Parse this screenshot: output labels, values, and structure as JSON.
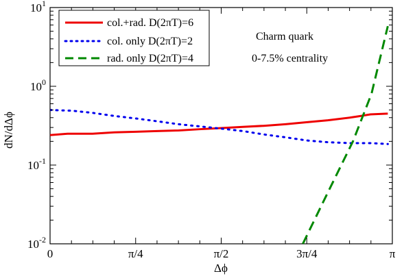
{
  "chart_data": {
    "type": "line",
    "title": "",
    "xlabel": "Δϕ",
    "ylabel": "dN/dΔϕ",
    "yscale": "log",
    "xlim": [
      0,
      3.14159
    ],
    "ylim": [
      0.01,
      10
    ],
    "grid": false,
    "legend_position": "top-left",
    "x_ticks": [
      {
        "value": 0,
        "label": "0"
      },
      {
        "value": 0.7854,
        "label": "π/4"
      },
      {
        "value": 1.5708,
        "label": "π/2"
      },
      {
        "value": 2.3562,
        "label": "3π/4"
      },
      {
        "value": 3.14159,
        "label": "π"
      }
    ],
    "y_ticks": [
      {
        "value": 0.01,
        "base": "10",
        "exp": "-2"
      },
      {
        "value": 0.1,
        "base": "10",
        "exp": "-1"
      },
      {
        "value": 1,
        "base": "10",
        "exp": "0"
      },
      {
        "value": 10,
        "base": "10",
        "exp": "1"
      }
    ],
    "annotations": [
      "Charm quark",
      "0-7.5% centrality"
    ],
    "series": [
      {
        "name": "col.+rad. D(2πT)=6",
        "color": "#ee0000",
        "style": "solid",
        "x": [
          0.0,
          0.16,
          0.39,
          0.59,
          0.79,
          0.98,
          1.18,
          1.37,
          1.57,
          1.77,
          1.96,
          2.16,
          2.36,
          2.55,
          2.75,
          2.85,
          2.94,
          3.1
        ],
        "y": [
          0.24,
          0.25,
          0.25,
          0.26,
          0.265,
          0.27,
          0.275,
          0.285,
          0.295,
          0.305,
          0.315,
          0.33,
          0.35,
          0.37,
          0.4,
          0.42,
          0.44,
          0.45
        ]
      },
      {
        "name": "col. only D(2πT)=2",
        "color": "#0000ee",
        "style": "dotted",
        "x": [
          0.0,
          0.2,
          0.39,
          0.59,
          0.79,
          0.98,
          1.18,
          1.37,
          1.57,
          1.77,
          1.96,
          2.16,
          2.36,
          2.55,
          2.75,
          2.94,
          3.1
        ],
        "y": [
          0.5,
          0.49,
          0.46,
          0.42,
          0.39,
          0.36,
          0.33,
          0.31,
          0.29,
          0.27,
          0.245,
          0.225,
          0.205,
          0.195,
          0.19,
          0.19,
          0.185
        ]
      },
      {
        "name": "rad. only D(2πT)=4",
        "color": "#008800",
        "style": "dashed",
        "x": [
          2.32,
          2.55,
          2.78,
          2.95,
          3.1
        ],
        "y": [
          0.01,
          0.045,
          0.2,
          0.8,
          5.8
        ]
      }
    ]
  }
}
